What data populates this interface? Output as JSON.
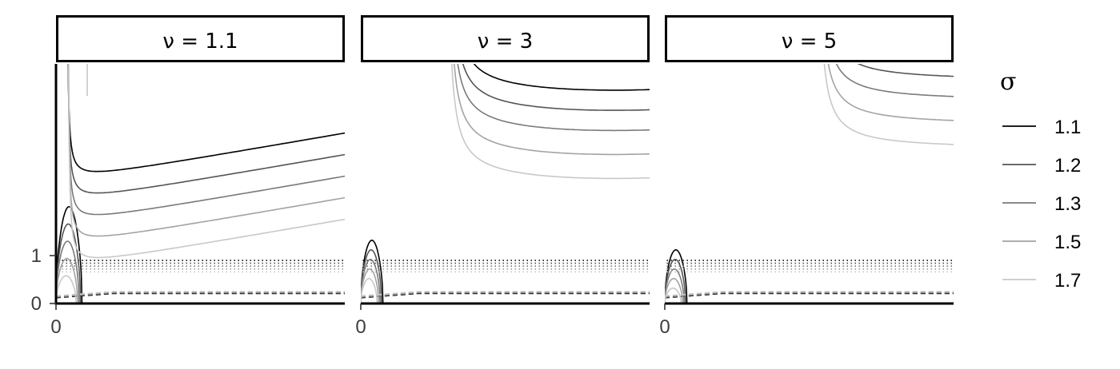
{
  "chart_data": {
    "type": "line",
    "title": "",
    "xlabel": "",
    "ylabel": "",
    "facet_by": "nu",
    "panels": [
      {
        "label": "ν = 1.1",
        "nu": 1.1
      },
      {
        "label": "ν = 3",
        "nu": 3
      },
      {
        "label": "ν = 5",
        "nu": 5
      }
    ],
    "x_ticks": [
      {
        "value": 0,
        "label": "0"
      }
    ],
    "y_ticks": [
      {
        "value": 0,
        "label": "0"
      },
      {
        "value": 1,
        "label": "1"
      }
    ],
    "xlim": [
      0,
      30
    ],
    "ylim": [
      0,
      5
    ],
    "grid": false,
    "legend": {
      "title": "σ",
      "position": "right",
      "entries": [
        {
          "label": "1.1",
          "sigma": 1.1,
          "color": "#000000"
        },
        {
          "label": "1.2",
          "sigma": 1.2,
          "color": "#555555"
        },
        {
          "label": "1.3",
          "sigma": 1.3,
          "color": "#7a7a7a"
        },
        {
          "label": "1.5",
          "sigma": 1.5,
          "color": "#a3a3a3"
        },
        {
          "label": "1.7",
          "sigma": 1.7,
          "color": "#c8c8c8"
        }
      ]
    },
    "line_styles": [
      "solid",
      "dashed",
      "dotted"
    ],
    "colors": {
      "strip_fill": "#ffffff",
      "strip_border": "#000000",
      "axis": "#000000"
    }
  }
}
